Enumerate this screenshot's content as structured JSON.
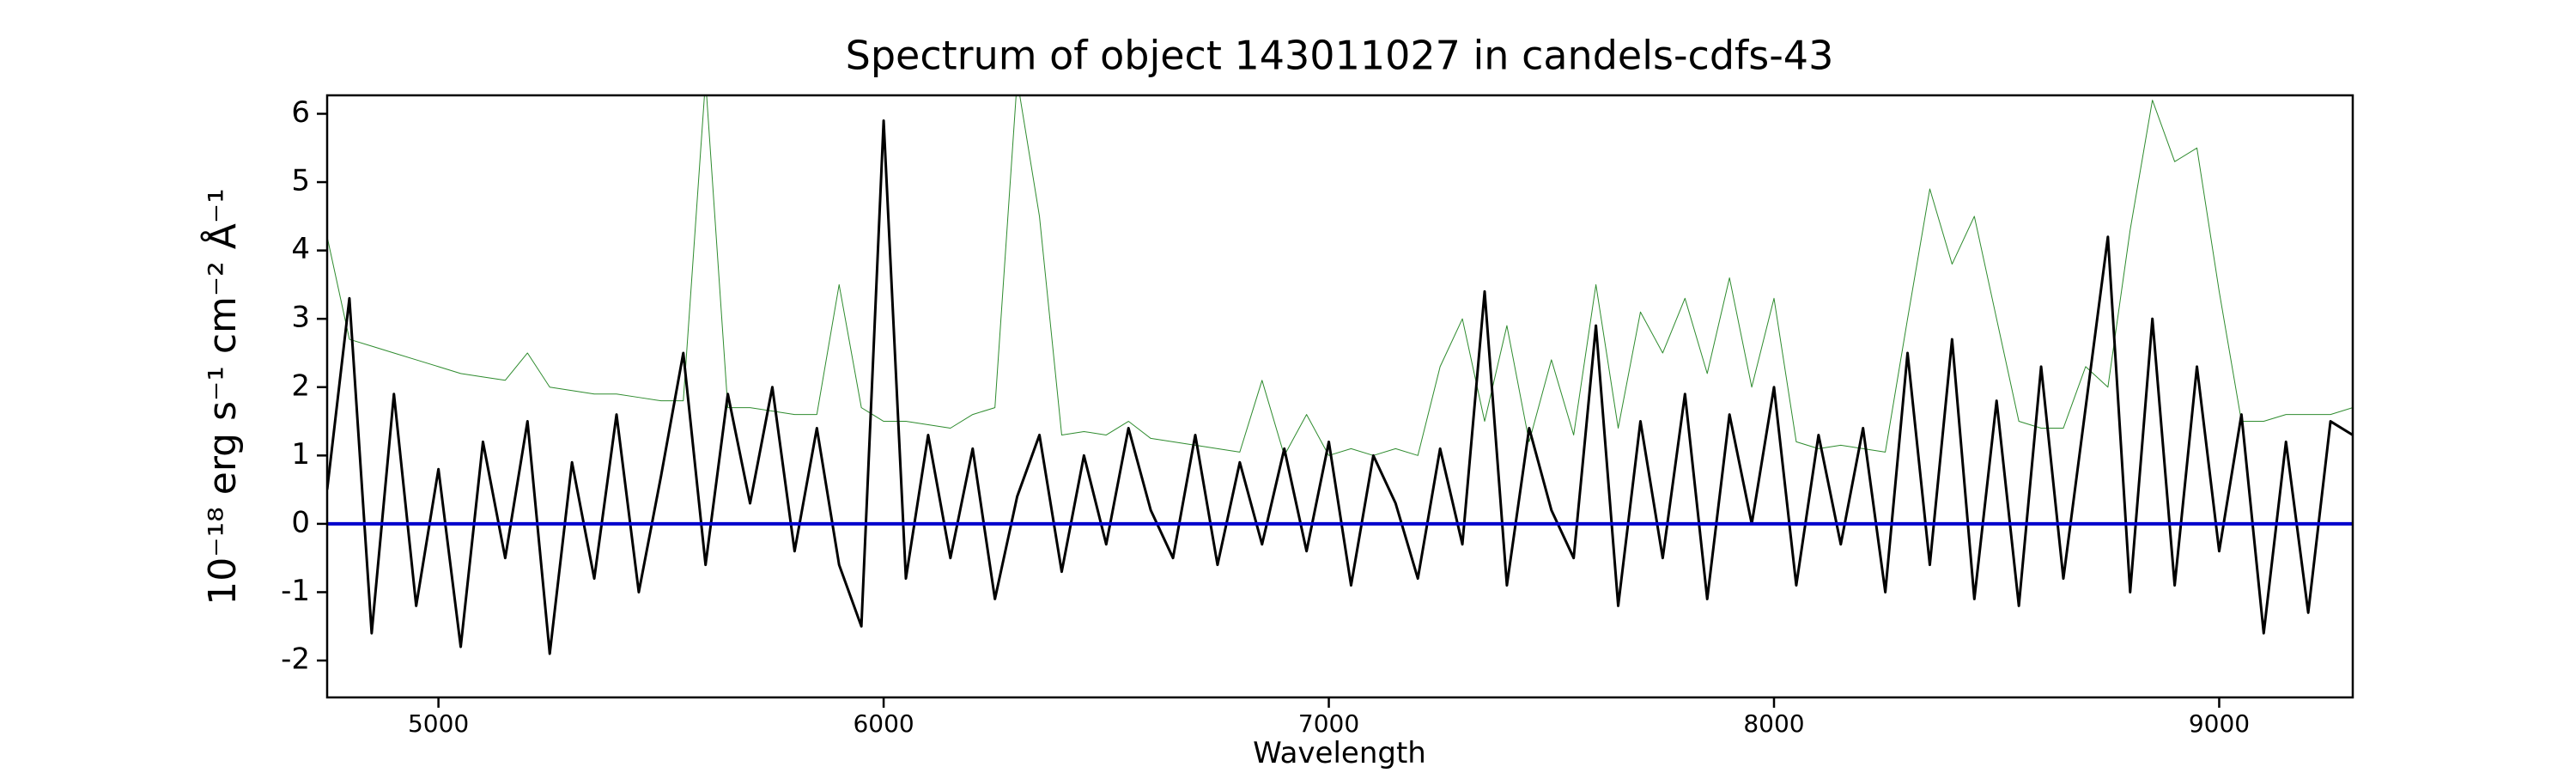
{
  "chart_data": {
    "type": "line",
    "title": "Spectrum of object 143011027 in candels-cdfs-43",
    "xlabel": "Wavelength",
    "ylabel": "10⁻¹⁸ erg s⁻¹ cm⁻² Å⁻¹",
    "x": [
      4750,
      4800,
      4850,
      4900,
      4950,
      5000,
      5050,
      5100,
      5150,
      5200,
      5250,
      5300,
      5350,
      5400,
      5450,
      5500,
      5550,
      5600,
      5650,
      5700,
      5750,
      5800,
      5850,
      5900,
      5950,
      6000,
      6050,
      6100,
      6150,
      6200,
      6250,
      6300,
      6350,
      6400,
      6450,
      6500,
      6550,
      6600,
      6650,
      6700,
      6750,
      6800,
      6850,
      6900,
      6950,
      7000,
      7050,
      7100,
      7150,
      7200,
      7250,
      7300,
      7350,
      7400,
      7450,
      7500,
      7550,
      7600,
      7650,
      7700,
      7750,
      7800,
      7850,
      7900,
      7950,
      8000,
      8050,
      8100,
      8150,
      8200,
      8250,
      8300,
      8350,
      8400,
      8450,
      8500,
      8550,
      8600,
      8650,
      8700,
      8750,
      8800,
      8850,
      8900,
      8950,
      9000,
      9050,
      9100,
      9150,
      9200,
      9250,
      9300
    ],
    "series": [
      {
        "color": "#2e8b2e",
        "width": 1,
        "values": [
          4.2,
          2.7,
          2.6,
          2.5,
          2.4,
          2.3,
          2.2,
          2.15,
          2.1,
          2.5,
          2.0,
          1.95,
          1.9,
          1.9,
          1.85,
          1.8,
          1.8,
          6.5,
          1.7,
          1.7,
          1.65,
          1.6,
          1.6,
          3.5,
          1.7,
          1.5,
          1.5,
          1.45,
          1.4,
          1.6,
          1.7,
          6.5,
          4.5,
          1.3,
          1.35,
          1.3,
          1.5,
          1.25,
          1.2,
          1.15,
          1.1,
          1.05,
          2.1,
          1.0,
          1.6,
          1.0,
          1.1,
          1.0,
          1.1,
          1.0,
          2.3,
          3.0,
          1.5,
          2.9,
          1.2,
          2.4,
          1.3,
          3.5,
          1.4,
          3.1,
          2.5,
          3.3,
          2.2,
          3.6,
          2.0,
          3.3,
          1.2,
          1.1,
          1.15,
          1.1,
          1.05,
          3.0,
          4.9,
          3.8,
          4.5,
          3.0,
          1.5,
          1.4,
          1.4,
          2.3,
          2.0,
          4.3,
          6.2,
          5.3,
          5.5,
          3.4,
          1.5,
          1.5,
          1.6,
          1.6,
          1.6,
          1.7
        ]
      },
      {
        "color": "#000000",
        "width": 3,
        "values": [
          0.5,
          3.3,
          -1.6,
          1.9,
          -1.2,
          0.8,
          -1.8,
          1.2,
          -0.5,
          1.5,
          -1.9,
          0.9,
          -0.8,
          1.6,
          -1.0,
          0.7,
          2.5,
          -0.6,
          1.9,
          0.3,
          2.0,
          -0.4,
          1.4,
          -0.6,
          -1.5,
          5.9,
          -0.8,
          1.3,
          -0.5,
          1.1,
          -1.1,
          0.4,
          1.3,
          -0.7,
          1.0,
          -0.3,
          1.4,
          0.2,
          -0.5,
          1.3,
          -0.6,
          0.9,
          -0.3,
          1.1,
          -0.4,
          1.2,
          -0.9,
          1.0,
          0.3,
          -0.8,
          1.1,
          -0.3,
          3.4,
          -0.9,
          1.4,
          0.2,
          -0.5,
          2.9,
          -1.2,
          1.5,
          -0.5,
          1.9,
          -1.1,
          1.6,
          0.0,
          2.0,
          -0.9,
          1.3,
          -0.3,
          1.4,
          -1.0,
          2.5,
          -0.6,
          2.7,
          -1.1,
          1.8,
          -1.2,
          2.3,
          -0.8,
          1.7,
          4.2,
          -1.0,
          3.0,
          -0.9,
          2.3,
          -0.4,
          1.6,
          -1.6,
          1.2,
          -1.3,
          1.5,
          1.3
        ]
      },
      {
        "color": "#0000cc",
        "width": 4,
        "values": [
          0,
          0,
          0,
          0,
          0,
          0,
          0,
          0,
          0,
          0,
          0,
          0,
          0,
          0,
          0,
          0,
          0,
          0,
          0,
          0,
          0,
          0,
          0,
          0,
          0,
          0,
          0,
          0,
          0,
          0,
          0,
          0,
          0,
          0,
          0,
          0,
          0,
          0,
          0,
          0,
          0,
          0,
          0,
          0,
          0,
          0,
          0,
          0,
          0,
          0,
          0,
          0,
          0,
          0,
          0,
          0,
          0,
          0,
          0,
          0,
          0,
          0,
          0,
          0,
          0,
          0,
          0,
          0,
          0,
          0,
          0,
          0,
          0,
          0,
          0,
          0,
          0,
          0,
          0,
          0,
          0,
          0,
          0,
          0,
          0,
          0,
          0,
          0,
          0,
          0,
          0,
          0
        ]
      }
    ],
    "xlim": [
      4750,
      9300
    ],
    "xticks": [
      5000,
      6000,
      7000,
      8000,
      9000
    ],
    "ylim": [
      -2.54,
      6.27
    ],
    "yticks": [
      -2,
      -1,
      0,
      1,
      2,
      3,
      4,
      5,
      6
    ],
    "grid": false
  }
}
